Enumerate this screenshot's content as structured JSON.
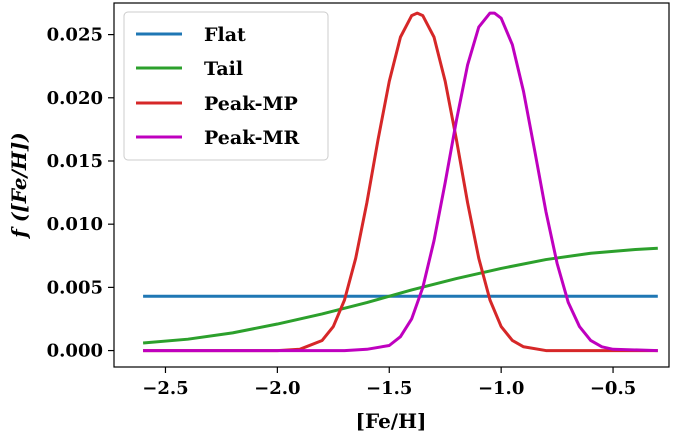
{
  "chart_data": {
    "type": "line",
    "xlabel": "[Fe/H]",
    "ylabel": "f ([Fe/H])",
    "xlim": [
      -2.73,
      -0.25
    ],
    "ylim": [
      -0.0013,
      0.0275
    ],
    "xticks": [
      -2.5,
      -2.0,
      -1.5,
      -1.0,
      -0.5
    ],
    "xtick_labels": [
      "−2.5",
      "−2.0",
      "−1.5",
      "−1.0",
      "−0.5"
    ],
    "yticks": [
      0.0,
      0.005,
      0.01,
      0.015,
      0.02,
      0.025
    ],
    "ytick_labels": [
      "0.000",
      "0.005",
      "0.010",
      "0.015",
      "0.020",
      "0.025"
    ],
    "grid": false,
    "legend_position": "top-left",
    "series": [
      {
        "name": "Flat",
        "color": "#1f77b4",
        "x": [
          -2.6,
          -2.3,
          -2.0,
          -1.7,
          -1.4,
          -1.1,
          -0.8,
          -0.5,
          -0.3
        ],
        "y": [
          0.0043,
          0.0043,
          0.0043,
          0.0043,
          0.0043,
          0.0043,
          0.0043,
          0.0043,
          0.0043
        ]
      },
      {
        "name": "Tail",
        "color": "#2ca02c",
        "x": [
          -2.6,
          -2.4,
          -2.2,
          -2.0,
          -1.8,
          -1.6,
          -1.4,
          -1.2,
          -1.0,
          -0.8,
          -0.6,
          -0.4,
          -0.3
        ],
        "y": [
          0.0006,
          0.0009,
          0.0014,
          0.0021,
          0.0029,
          0.0038,
          0.0048,
          0.0057,
          0.0065,
          0.0072,
          0.0077,
          0.008,
          0.0081
        ]
      },
      {
        "name": "Peak-MP",
        "color": "#d62728",
        "x": [
          -2.6,
          -2.0,
          -1.9,
          -1.8,
          -1.75,
          -1.7,
          -1.65,
          -1.6,
          -1.55,
          -1.5,
          -1.45,
          -1.4,
          -1.375,
          -1.35,
          -1.3,
          -1.25,
          -1.2,
          -1.15,
          -1.1,
          -1.05,
          -1.0,
          -0.95,
          -0.9,
          -0.8,
          -0.7,
          -0.3
        ],
        "y": [
          0.0,
          0.0,
          0.0001,
          0.0008,
          0.0019,
          0.004,
          0.0073,
          0.0117,
          0.0167,
          0.0213,
          0.0248,
          0.0265,
          0.0267,
          0.0265,
          0.0248,
          0.0213,
          0.0167,
          0.0117,
          0.0073,
          0.004,
          0.0019,
          0.0008,
          0.0003,
          0.0,
          0.0,
          0.0
        ]
      },
      {
        "name": "Peak-MR",
        "color": "#bf00bf",
        "x": [
          -2.6,
          -1.7,
          -1.6,
          -1.5,
          -1.45,
          -1.4,
          -1.35,
          -1.3,
          -1.25,
          -1.2,
          -1.15,
          -1.1,
          -1.05,
          -1.03,
          -1.0,
          -0.95,
          -0.9,
          -0.85,
          -0.8,
          -0.75,
          -0.7,
          -0.65,
          -0.6,
          -0.55,
          -0.5,
          -0.3
        ],
        "y": [
          0.0,
          0.0,
          0.0001,
          0.0004,
          0.0011,
          0.0025,
          0.005,
          0.0087,
          0.0133,
          0.0182,
          0.0226,
          0.0256,
          0.0267,
          0.0267,
          0.0263,
          0.0242,
          0.0205,
          0.0158,
          0.011,
          0.0069,
          0.0038,
          0.0019,
          0.0008,
          0.0003,
          0.0001,
          0.0
        ]
      }
    ]
  }
}
